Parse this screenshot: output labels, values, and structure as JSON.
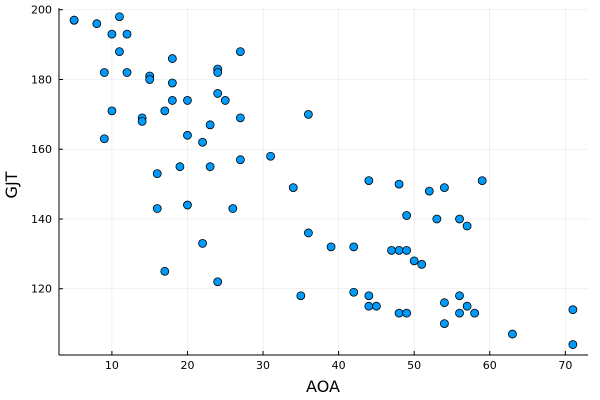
{
  "chart_data": {
    "type": "scatter",
    "xlabel": "AOA",
    "ylabel": "GJT",
    "xlim": [
      3,
      73
    ],
    "ylim": [
      101,
      200.5
    ],
    "xticks": [
      10,
      20,
      30,
      40,
      50,
      60,
      70
    ],
    "yticks": [
      120,
      140,
      160,
      180,
      200
    ],
    "grid": true,
    "legend": "none",
    "marker_color": "#009AFA",
    "points": [
      {
        "x": 5,
        "y": 197
      },
      {
        "x": 5,
        "y": 197
      },
      {
        "x": 8,
        "y": 196
      },
      {
        "x": 11,
        "y": 198
      },
      {
        "x": 10,
        "y": 193
      },
      {
        "x": 12,
        "y": 193
      },
      {
        "x": 11,
        "y": 188
      },
      {
        "x": 9,
        "y": 182
      },
      {
        "x": 12,
        "y": 182
      },
      {
        "x": 15,
        "y": 181
      },
      {
        "x": 15,
        "y": 180
      },
      {
        "x": 18,
        "y": 186
      },
      {
        "x": 18,
        "y": 179
      },
      {
        "x": 24,
        "y": 183
      },
      {
        "x": 24,
        "y": 182
      },
      {
        "x": 27,
        "y": 188
      },
      {
        "x": 10,
        "y": 171
      },
      {
        "x": 14,
        "y": 169
      },
      {
        "x": 14,
        "y": 168
      },
      {
        "x": 17,
        "y": 171
      },
      {
        "x": 18,
        "y": 174
      },
      {
        "x": 20,
        "y": 174
      },
      {
        "x": 24,
        "y": 176
      },
      {
        "x": 25,
        "y": 174
      },
      {
        "x": 27,
        "y": 169
      },
      {
        "x": 23,
        "y": 167
      },
      {
        "x": 20,
        "y": 164
      },
      {
        "x": 22,
        "y": 162
      },
      {
        "x": 9,
        "y": 163
      },
      {
        "x": 16,
        "y": 153
      },
      {
        "x": 19,
        "y": 155
      },
      {
        "x": 23,
        "y": 155
      },
      {
        "x": 27,
        "y": 157
      },
      {
        "x": 31,
        "y": 158
      },
      {
        "x": 36,
        "y": 170
      },
      {
        "x": 34,
        "y": 149
      },
      {
        "x": 16,
        "y": 143
      },
      {
        "x": 20,
        "y": 144
      },
      {
        "x": 26,
        "y": 143
      },
      {
        "x": 22,
        "y": 133
      },
      {
        "x": 17,
        "y": 125
      },
      {
        "x": 24,
        "y": 122
      },
      {
        "x": 36,
        "y": 136
      },
      {
        "x": 35,
        "y": 118
      },
      {
        "x": 39,
        "y": 132
      },
      {
        "x": 42,
        "y": 132
      },
      {
        "x": 42,
        "y": 119
      },
      {
        "x": 44,
        "y": 151
      },
      {
        "x": 44,
        "y": 118
      },
      {
        "x": 44,
        "y": 115
      },
      {
        "x": 45,
        "y": 115
      },
      {
        "x": 47,
        "y": 131
      },
      {
        "x": 48,
        "y": 131
      },
      {
        "x": 49,
        "y": 131
      },
      {
        "x": 48,
        "y": 150
      },
      {
        "x": 49,
        "y": 141
      },
      {
        "x": 50,
        "y": 128
      },
      {
        "x": 51,
        "y": 127
      },
      {
        "x": 48,
        "y": 113
      },
      {
        "x": 49,
        "y": 113
      },
      {
        "x": 52,
        "y": 148
      },
      {
        "x": 54,
        "y": 149
      },
      {
        "x": 53,
        "y": 140
      },
      {
        "x": 56,
        "y": 140
      },
      {
        "x": 57,
        "y": 138
      },
      {
        "x": 59,
        "y": 151
      },
      {
        "x": 54,
        "y": 116
      },
      {
        "x": 56,
        "y": 118
      },
      {
        "x": 57,
        "y": 115
      },
      {
        "x": 56,
        "y": 113
      },
      {
        "x": 58,
        "y": 113
      },
      {
        "x": 54,
        "y": 110
      },
      {
        "x": 63,
        "y": 107
      },
      {
        "x": 71,
        "y": 114
      },
      {
        "x": 71,
        "y": 104
      }
    ]
  }
}
